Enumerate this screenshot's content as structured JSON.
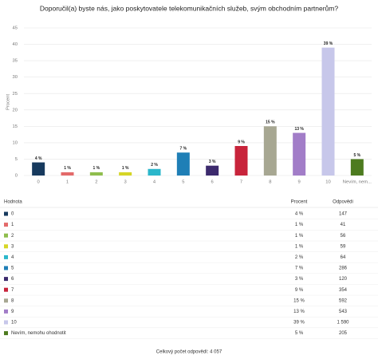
{
  "chart_data": {
    "type": "bar",
    "title": "Doporučil(a) byste nás, jako poskytovatele telekomunikačních služeb, svým obchodním partnerům?",
    "ylabel": "Procent",
    "categories": [
      "0",
      "1",
      "2",
      "3",
      "4",
      "5",
      "6",
      "7",
      "8",
      "9",
      "10",
      "Nevím, nem..."
    ],
    "values": [
      4,
      1,
      1,
      1,
      2,
      7,
      3,
      9,
      15,
      13,
      39,
      5
    ],
    "value_labels": [
      "4 %",
      "1 %",
      "1 %",
      "1 %",
      "2 %",
      "7 %",
      "3 %",
      "9 %",
      "15 %",
      "13 %",
      "39 %",
      "5 %"
    ],
    "colors": [
      "#173a5e",
      "#e36a6a",
      "#8fbd4d",
      "#d6d626",
      "#2bb7cb",
      "#1f7fb6",
      "#3c2a6d",
      "#c8243b",
      "#a7a792",
      "#a27dc8",
      "#c7c7ea",
      "#4d7b1f"
    ],
    "ylim": [
      0,
      45
    ],
    "yticks": [
      0,
      5,
      10,
      15,
      20,
      25,
      30,
      35,
      40,
      45
    ],
    "grid": true
  },
  "table": {
    "header": [
      "Hodnota",
      "Procent",
      "Odpovědi"
    ],
    "rows": [
      [
        "0",
        "4 %",
        "147"
      ],
      [
        "1",
        "1 %",
        "41"
      ],
      [
        "2",
        "1 %",
        "56"
      ],
      [
        "3",
        "1 %",
        "59"
      ],
      [
        "4",
        "2 %",
        "64"
      ],
      [
        "5",
        "7 %",
        "286"
      ],
      [
        "6",
        "3 %",
        "120"
      ],
      [
        "7",
        "9 %",
        "354"
      ],
      [
        "8",
        "15 %",
        "592"
      ],
      [
        "9",
        "13 %",
        "543"
      ],
      [
        "10",
        "39 %",
        "1 590"
      ],
      [
        "Nevím, nemohu ohodnotit",
        "5 %",
        "205"
      ]
    ]
  },
  "footer": "Celkový počet odpovědí: 4 057"
}
